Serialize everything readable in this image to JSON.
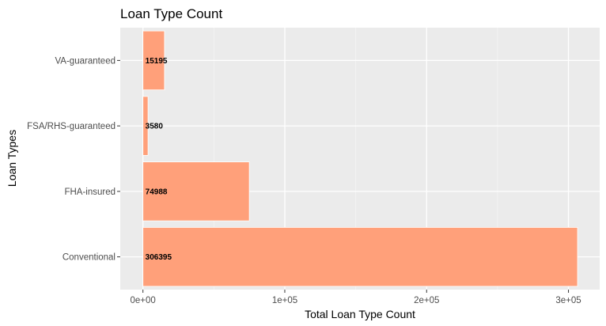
{
  "chart_data": {
    "type": "bar",
    "orientation": "horizontal",
    "title": "Loan Type Count",
    "xlabel": "Total Loan Type Count",
    "ylabel": "Loan Types",
    "categories": [
      "Conventional",
      "FHA-insured",
      "FSA/RHS-guaranteed",
      "VA-guaranteed"
    ],
    "values": [
      306395,
      74988,
      3580,
      15195
    ],
    "data_labels": [
      "306395",
      "74988",
      "3580",
      "15195"
    ],
    "xlim": [
      -16000,
      322000
    ],
    "x_ticks": [
      0,
      100000,
      200000,
      300000
    ],
    "x_tick_labels": [
      "0e+00",
      "1e+05",
      "2e+05",
      "3e+05"
    ],
    "grid": true,
    "legend": "none",
    "colors": {
      "bar": "#FFA07A",
      "panel": "#EBEBEB",
      "grid_major": "#FFFFFF",
      "grid_minor": "#F5F5F5",
      "tick_text": "#4D4D4D",
      "tick_mark": "#333333"
    }
  }
}
